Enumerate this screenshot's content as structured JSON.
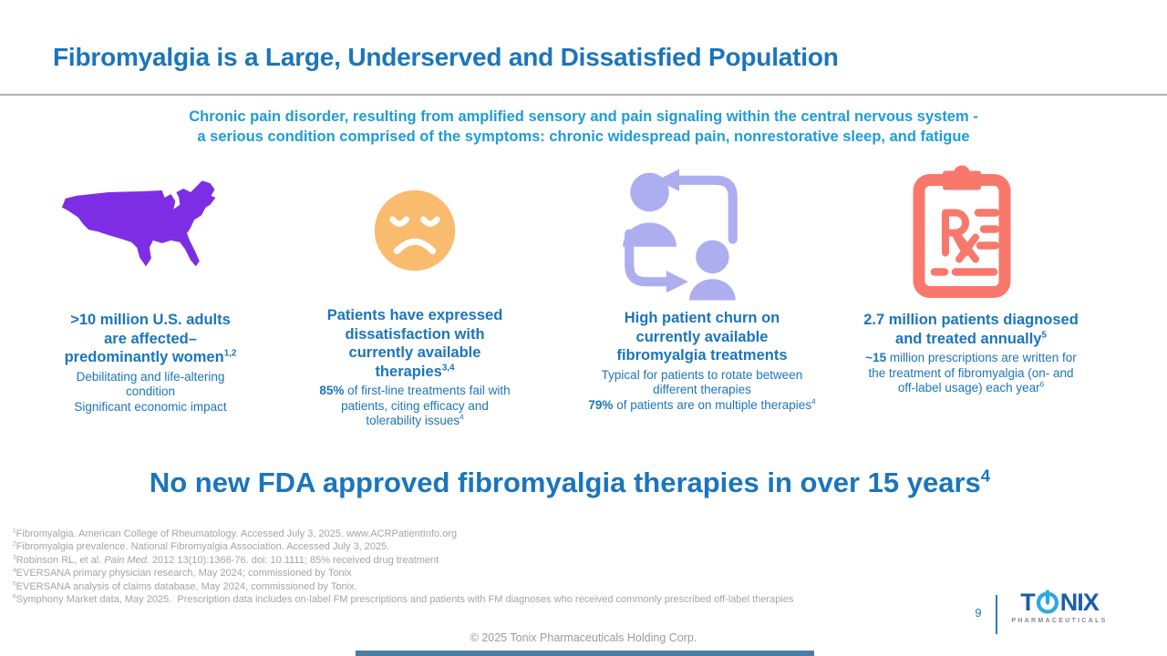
{
  "colors": {
    "blue_dark": "#1B75BC",
    "blue_light": "#1E9CD8",
    "map_purple": "#7D2EE4",
    "face_orange": "#F9BC6E",
    "churn_lavender": "#ADAEF0",
    "rx_coral": "#F9786C",
    "logo_light": "#2BA9E0",
    "logo_dark": "#1C5EA9",
    "footnote_gray": "#A5A5A5",
    "footer_bar": "#4A7CA5"
  },
  "header": {
    "title": "Fibromyalgia is a Large, Underserved and Dissatisfied Population"
  },
  "subtitle": {
    "line1": "Chronic pain disorder, resulting from amplified sensory and pain signaling within the central nervous system -",
    "line2": "a serious condition comprised of the symptoms: chronic widespread pain, nonrestorative sleep, and fatigue"
  },
  "columns": [
    {
      "icon": "us-map",
      "heading_lines": [
        {
          "text": ">10 million U.S. adults"
        },
        {
          "text": "are affected–"
        },
        {
          "text": "predominantly women",
          "sup": "1,2"
        }
      ],
      "body_lines": [
        {
          "text": "Debilitating and life-altering"
        },
        {
          "text": "condition"
        },
        {
          "text": "Significant economic impact"
        }
      ]
    },
    {
      "icon": "sad-face",
      "heading_lines": [
        {
          "text": "Patients have expressed"
        },
        {
          "text": "dissatisfaction with"
        },
        {
          "text": "currently available"
        },
        {
          "text": "therapies",
          "sup": "3,4"
        }
      ],
      "body_lines": [
        {
          "bold": "85%",
          "text": " of first-line treatments fail with"
        },
        {
          "text": "patients, citing efficacy and"
        },
        {
          "text": "tolerability issues",
          "sup": "4"
        }
      ]
    },
    {
      "icon": "patient-churn",
      "heading_lines": [
        {
          "text": "High patient churn on"
        },
        {
          "text": "currently available"
        },
        {
          "text": "fibromyalgia treatments"
        }
      ],
      "body_lines": [
        {
          "text": "Typical for patients to rotate between"
        },
        {
          "text": "different therapies"
        },
        {
          "bold": "79%",
          "text": " of patients are on multiple therapies",
          "sup": "4"
        }
      ]
    },
    {
      "icon": "rx-clipboard",
      "heading_lines": [
        {
          "text": "2.7 million patients diagnosed"
        },
        {
          "text": "and treated annually",
          "sup": "5"
        }
      ],
      "body_lines": [
        {
          "bold": "~15",
          "text": " million prescriptions are written for"
        },
        {
          "text": "the treatment of fibromyalgia (on- and"
        },
        {
          "text": "off-label usage) each year",
          "sup": "6"
        }
      ]
    }
  ],
  "headline": {
    "text": "No new FDA approved fibromyalgia therapies in over 15 years",
    "sup": "4"
  },
  "footnotes": [
    {
      "sup": "1",
      "text": "Fibromyalgia. American College of Rheumatology. Accessed July 3, 2025. www.ACRPatientInfo.org"
    },
    {
      "sup": "2",
      "text": "Fibromyalgia prevalence. National Fibromyalgia Association. Accessed July 3, 2025."
    },
    {
      "sup": "3",
      "pre": "Robinson RL, et al. ",
      "italic": "Pain Med.",
      "post": " 2012 13(10):1366-76. doi: 10.1111; 85% received drug treatment"
    },
    {
      "sup": "4",
      "text": "EVERSANA primary physician research, May 2024; commissioned by Tonix"
    },
    {
      "sup": "5",
      "text": "EVERSANA analysis of claims database, May 2024, commissioned by Tonix."
    },
    {
      "sup": "6",
      "text": "Symphony Market data, May 2025.  Prescription data includes on-label FM prescriptions and patients with FM diagnoses who received commonly prescribed off-label therapies"
    }
  ],
  "footer": {
    "page_number": "9",
    "copyright": "© 2025 Tonix Pharmaceuticals Holding Corp.",
    "logo": {
      "t": "T",
      "nix": "NIX",
      "tagline": "PHARMACEUTICALS"
    }
  }
}
